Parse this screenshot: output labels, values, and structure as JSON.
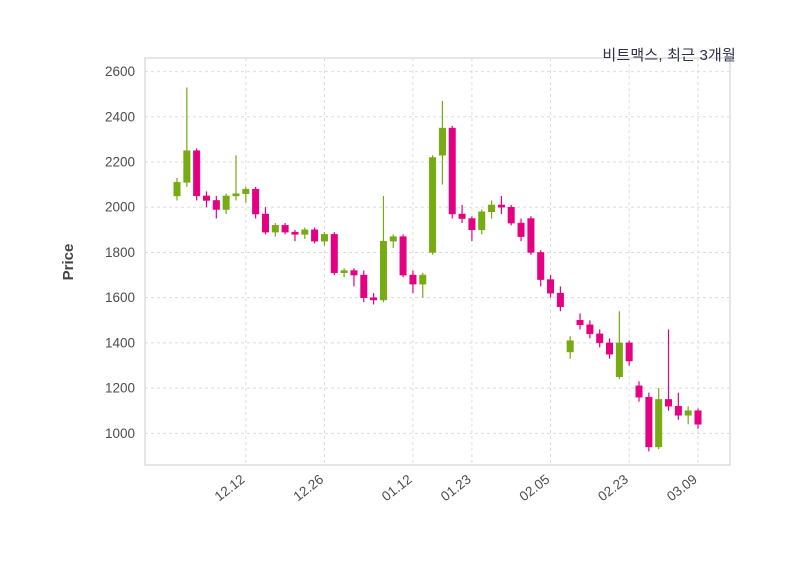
{
  "chart": {
    "title": "비트맥스, 최근 3개월",
    "ylabel": "Price"
  },
  "chart_data": {
    "type": "candlestick",
    "title": "비트맥스, 최근 3개월",
    "ylabel": "Price",
    "xlabel": "",
    "ylim": [
      860,
      2660
    ],
    "yticks": [
      1000,
      1200,
      1400,
      1600,
      1800,
      2000,
      2200,
      2400,
      2600
    ],
    "xticks": [
      {
        "index": 7,
        "label": "12.12"
      },
      {
        "index": 15,
        "label": "12.26"
      },
      {
        "index": 24,
        "label": "01.12"
      },
      {
        "index": 30,
        "label": "01.23"
      },
      {
        "index": 38,
        "label": "02.05"
      },
      {
        "index": 46,
        "label": "02.23"
      },
      {
        "index": 53,
        "label": "03.09"
      }
    ],
    "grid": true,
    "legend": "none",
    "colors": {
      "up": "#77ab12",
      "down": "#e40082",
      "grid": "#dddddd",
      "border": "#cccccc",
      "axis_text": "#4d4d4d",
      "title_text": "#2f2f4f"
    },
    "ohlc_order": [
      "open",
      "high",
      "low",
      "close"
    ],
    "candles_ohlc": [
      [
        2050,
        2130,
        2030,
        2110
      ],
      [
        2110,
        2530,
        2090,
        2250
      ],
      [
        2250,
        2260,
        2030,
        2050
      ],
      [
        2050,
        2070,
        2000,
        2030
      ],
      [
        2030,
        2050,
        1950,
        1990
      ],
      [
        1990,
        2060,
        1970,
        2050
      ],
      [
        2050,
        2230,
        2030,
        2060
      ],
      [
        2060,
        2090,
        2020,
        2080
      ],
      [
        2080,
        2090,
        1950,
        1970
      ],
      [
        1970,
        2000,
        1880,
        1890
      ],
      [
        1890,
        1930,
        1870,
        1920
      ],
      [
        1920,
        1930,
        1880,
        1890
      ],
      [
        1890,
        1900,
        1850,
        1880
      ],
      [
        1880,
        1910,
        1860,
        1900
      ],
      [
        1900,
        1910,
        1840,
        1850
      ],
      [
        1850,
        1890,
        1830,
        1880
      ],
      [
        1880,
        1890,
        1700,
        1710
      ],
      [
        1710,
        1730,
        1690,
        1720
      ],
      [
        1720,
        1730,
        1650,
        1700
      ],
      [
        1700,
        1720,
        1580,
        1600
      ],
      [
        1600,
        1620,
        1570,
        1590
      ],
      [
        1590,
        2050,
        1580,
        1850
      ],
      [
        1850,
        1880,
        1820,
        1870
      ],
      [
        1870,
        1880,
        1690,
        1700
      ],
      [
        1700,
        1720,
        1620,
        1660
      ],
      [
        1660,
        1710,
        1600,
        1700
      ],
      [
        1800,
        2230,
        1790,
        2220
      ],
      [
        2230,
        2470,
        2100,
        2350
      ],
      [
        2350,
        2360,
        1950,
        1970
      ],
      [
        1970,
        2010,
        1930,
        1950
      ],
      [
        1950,
        1960,
        1850,
        1900
      ],
      [
        1900,
        1990,
        1880,
        1980
      ],
      [
        1980,
        2030,
        1950,
        2010
      ],
      [
        2010,
        2050,
        1970,
        2000
      ],
      [
        2000,
        2010,
        1920,
        1930
      ],
      [
        1930,
        1950,
        1850,
        1870
      ],
      [
        1950,
        1960,
        1790,
        1800
      ],
      [
        1800,
        1810,
        1650,
        1680
      ],
      [
        1680,
        1700,
        1600,
        1620
      ],
      [
        1620,
        1650,
        1540,
        1560
      ],
      [
        1360,
        1430,
        1330,
        1410
      ],
      [
        1500,
        1530,
        1460,
        1480
      ],
      [
        1480,
        1500,
        1420,
        1440
      ],
      [
        1440,
        1460,
        1380,
        1400
      ],
      [
        1400,
        1420,
        1330,
        1350
      ],
      [
        1250,
        1540,
        1240,
        1400
      ],
      [
        1400,
        1410,
        1300,
        1320
      ],
      [
        1210,
        1230,
        1140,
        1160
      ],
      [
        1160,
        1180,
        920,
        940
      ],
      [
        940,
        1200,
        930,
        1150
      ],
      [
        1150,
        1460,
        1100,
        1120
      ],
      [
        1120,
        1180,
        1060,
        1080
      ],
      [
        1080,
        1120,
        1040,
        1100
      ],
      [
        1100,
        1110,
        1020,
        1040
      ]
    ]
  }
}
